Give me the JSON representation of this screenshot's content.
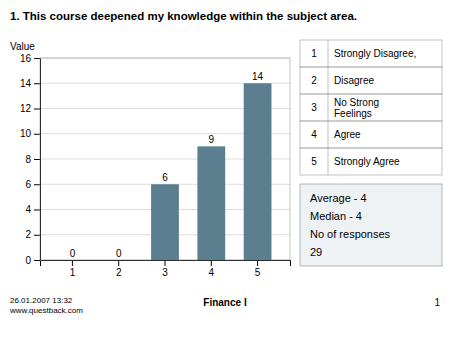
{
  "chart_data": {
    "type": "bar",
    "title": "1. This course deepened my knowledge within the subject area.",
    "categories": [
      1,
      2,
      3,
      4,
      5
    ],
    "values": [
      0,
      0,
      6,
      9,
      14
    ],
    "color": "#5b7f8f",
    "y_label": "Value",
    "ylim": [
      0,
      16
    ],
    "yticks": [
      0,
      2,
      4,
      6,
      8,
      10,
      12,
      14,
      16
    ],
    "grid": true,
    "data_labels": true,
    "category_labels": [
      "Strongly Disagree,",
      "Disagree",
      "No Strong\nFeelings",
      "Agree",
      "Strongly Agree"
    ],
    "annotations": [
      "Average - 4",
      "Median - 4",
      "No of responses",
      "29",
      "26.01.2007 13:32\nwww.questback.com",
      "Finance I",
      "1"
    ]
  }
}
